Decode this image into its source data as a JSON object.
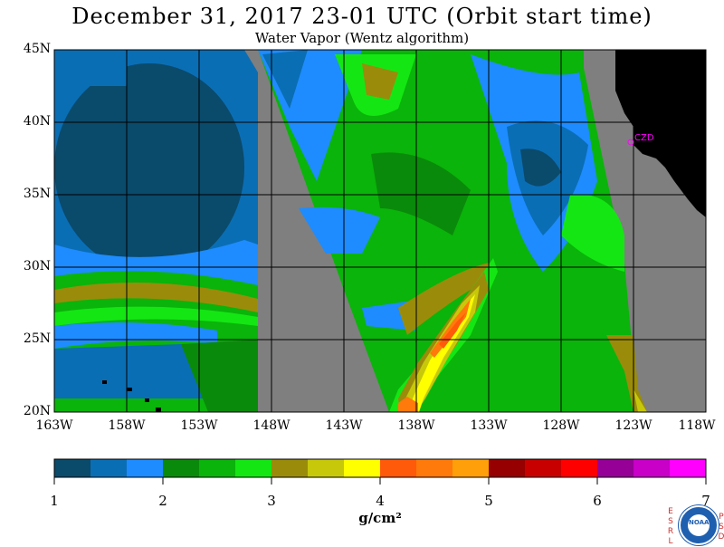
{
  "title": "December 31, 2017  23-01 UTC  (Orbit start time)",
  "subtitle": "Water Vapor (Wentz algorithm)",
  "map": {
    "lat_labels": [
      "45N",
      "40N",
      "35N",
      "30N",
      "25N",
      "20N"
    ],
    "lon_labels": [
      "163W",
      "158W",
      "153W",
      "148W",
      "143W",
      "138W",
      "133W",
      "128W",
      "123W",
      "118W"
    ],
    "station_label": "CZD",
    "colors": {
      "nodata": "#7f7f7f",
      "land": "#000000",
      "grid": "#000000",
      "station": "#ff00ff"
    }
  },
  "colorbar": {
    "labels": [
      "1",
      "2",
      "3",
      "4",
      "5",
      "6",
      "7"
    ],
    "units": "g/cm²",
    "colors": [
      "#0a4a6b",
      "#0a6eb5",
      "#1e8cff",
      "#0a8a0a",
      "#0ab40a",
      "#14e614",
      "#9a8c0a",
      "#c8c80a",
      "#ffff00",
      "#ff5a0a",
      "#ff7a0a",
      "#ffa00a",
      "#960000",
      "#c80000",
      "#ff0000",
      "#960096",
      "#c800c8",
      "#ff00ff"
    ]
  },
  "logo": {
    "left_text": "ESRL",
    "right_text": "PSD",
    "center_text": "NOAA"
  }
}
